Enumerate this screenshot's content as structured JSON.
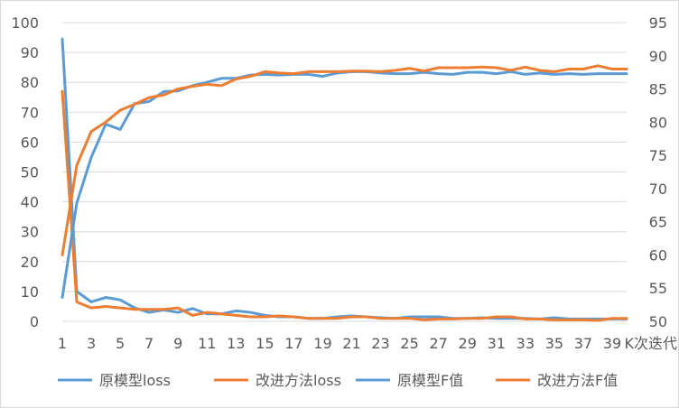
{
  "chart_data": {
    "type": "line",
    "title": "",
    "xlabel": "K次迭代",
    "x": [
      1,
      2,
      3,
      4,
      5,
      6,
      7,
      8,
      9,
      10,
      11,
      12,
      13,
      14,
      15,
      16,
      17,
      18,
      19,
      20,
      21,
      22,
      23,
      24,
      25,
      26,
      27,
      28,
      29,
      30,
      31,
      32,
      33,
      34,
      35,
      36,
      37,
      38,
      39,
      40
    ],
    "x_tick_labels": [
      "1",
      "3",
      "5",
      "7",
      "9",
      "11",
      "13",
      "15",
      "17",
      "19",
      "21",
      "23",
      "25",
      "27",
      "29",
      "31",
      "33",
      "35",
      "37",
      "39"
    ],
    "y_left": {
      "ylim": [
        0,
        100
      ],
      "ticks": [
        "0",
        "10",
        "20",
        "30",
        "40",
        "50",
        "60",
        "70",
        "80",
        "90",
        "100"
      ]
    },
    "y_right": {
      "ylim": [
        50,
        95
      ],
      "ticks": [
        "50",
        "55",
        "60",
        "65",
        "70",
        "75",
        "80",
        "85",
        "90",
        "95"
      ]
    },
    "grid": true,
    "legend_position": "bottom",
    "series": [
      {
        "name": "原模型loss",
        "axis": "left",
        "color": "#5B9BD5",
        "values": [
          94.5,
          10.0,
          6.5,
          8.0,
          7.2,
          4.5,
          3.0,
          3.8,
          3.0,
          4.3,
          2.5,
          2.5,
          3.5,
          3.0,
          2.0,
          1.5,
          1.5,
          1.0,
          1.0,
          1.5,
          1.8,
          1.5,
          1.2,
          1.0,
          1.5,
          1.5,
          1.5,
          1.0,
          1.0,
          1.2,
          1.0,
          1.0,
          1.0,
          0.8,
          1.2,
          0.8,
          0.8,
          0.8,
          0.8,
          0.8
        ]
      },
      {
        "name": "改进方法loss",
        "axis": "left",
        "color": "#ED7D31",
        "values": [
          77.0,
          6.5,
          4.5,
          5.0,
          4.5,
          4.0,
          4.0,
          4.0,
          4.5,
          2.0,
          3.0,
          2.5,
          2.0,
          1.5,
          1.5,
          1.8,
          1.5,
          1.0,
          1.0,
          1.0,
          1.5,
          1.5,
          1.0,
          1.0,
          1.0,
          0.5,
          0.8,
          0.8,
          1.0,
          1.0,
          1.5,
          1.5,
          0.8,
          0.8,
          0.5,
          0.5,
          0.5,
          0.3,
          1.0,
          1.0
        ]
      },
      {
        "name": "原模型F值",
        "axis": "right",
        "color": "#5B9BD5",
        "values": [
          53.6,
          67.8,
          74.7,
          79.7,
          78.9,
          82.8,
          83.1,
          84.6,
          84.7,
          85.5,
          86.0,
          86.6,
          86.6,
          87.1,
          87.2,
          87.1,
          87.2,
          87.2,
          86.9,
          87.4,
          87.6,
          87.6,
          87.4,
          87.3,
          87.3,
          87.5,
          87.3,
          87.2,
          87.5,
          87.5,
          87.3,
          87.6,
          87.2,
          87.4,
          87.2,
          87.3,
          87.2,
          87.3,
          87.3,
          87.3
        ]
      },
      {
        "name": "改进方法F值",
        "axis": "right",
        "color": "#ED7D31",
        "values": [
          60.0,
          73.5,
          78.6,
          80.0,
          81.8,
          82.7,
          83.7,
          84.1,
          85.0,
          85.4,
          85.7,
          85.5,
          86.5,
          86.9,
          87.6,
          87.4,
          87.3,
          87.6,
          87.6,
          87.6,
          87.7,
          87.7,
          87.6,
          87.8,
          88.1,
          87.7,
          88.2,
          88.2,
          88.2,
          88.3,
          88.2,
          87.8,
          88.3,
          87.8,
          87.6,
          88.0,
          88.0,
          88.5,
          88.0,
          88.0
        ]
      }
    ]
  }
}
